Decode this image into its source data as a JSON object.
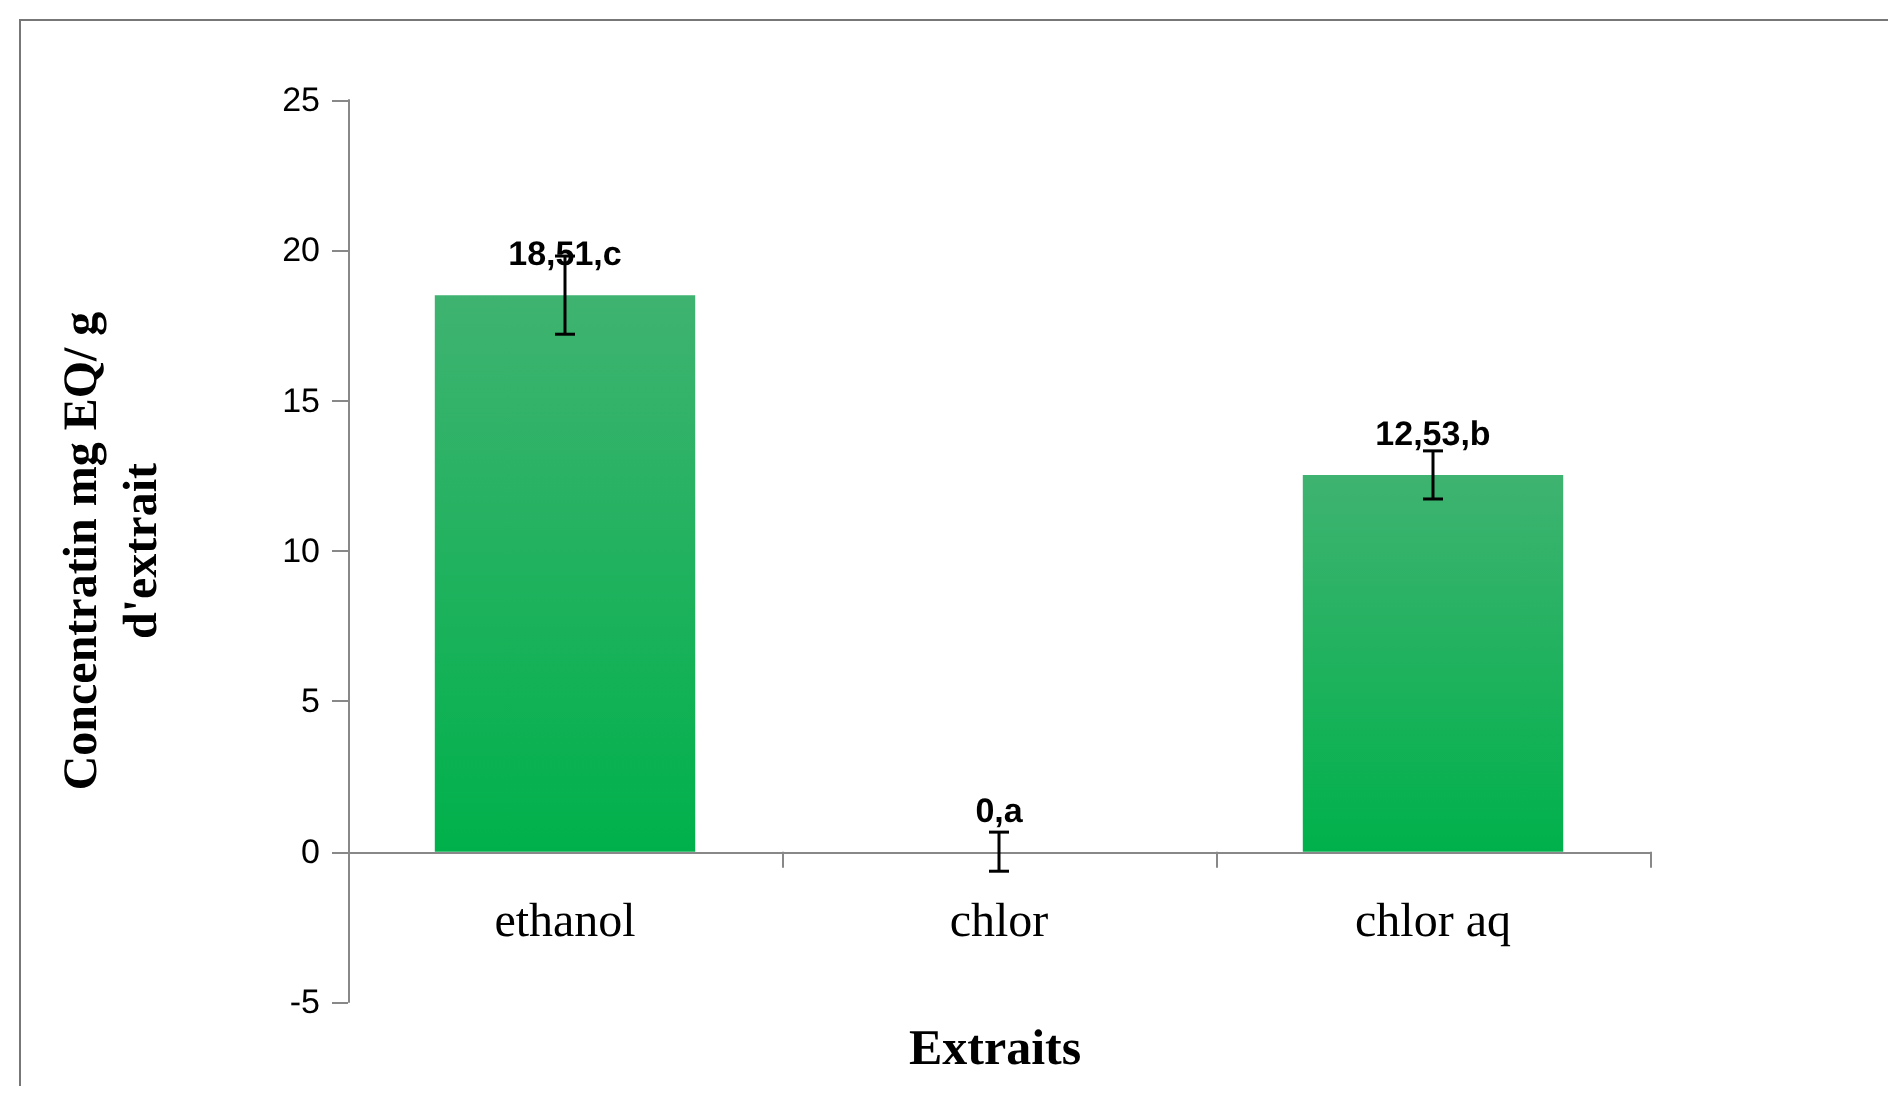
{
  "chart_data": {
    "type": "bar",
    "xlabel": "Extraits",
    "ylabel": "Concentratin mg EQ/ g\nd'extrait",
    "categories": [
      "ethanol",
      "chlor",
      "chlor aq"
    ],
    "values": [
      18.51,
      0,
      12.53
    ],
    "errors": [
      1.3,
      0.65,
      0.8
    ],
    "value_labels": [
      "18,51,c",
      "0,a",
      "12,53,b"
    ],
    "color": "#009a42",
    "ylim": [
      -5,
      25
    ],
    "yticks": [
      -5,
      0,
      5,
      10,
      15,
      20,
      25
    ],
    "grid": false
  }
}
